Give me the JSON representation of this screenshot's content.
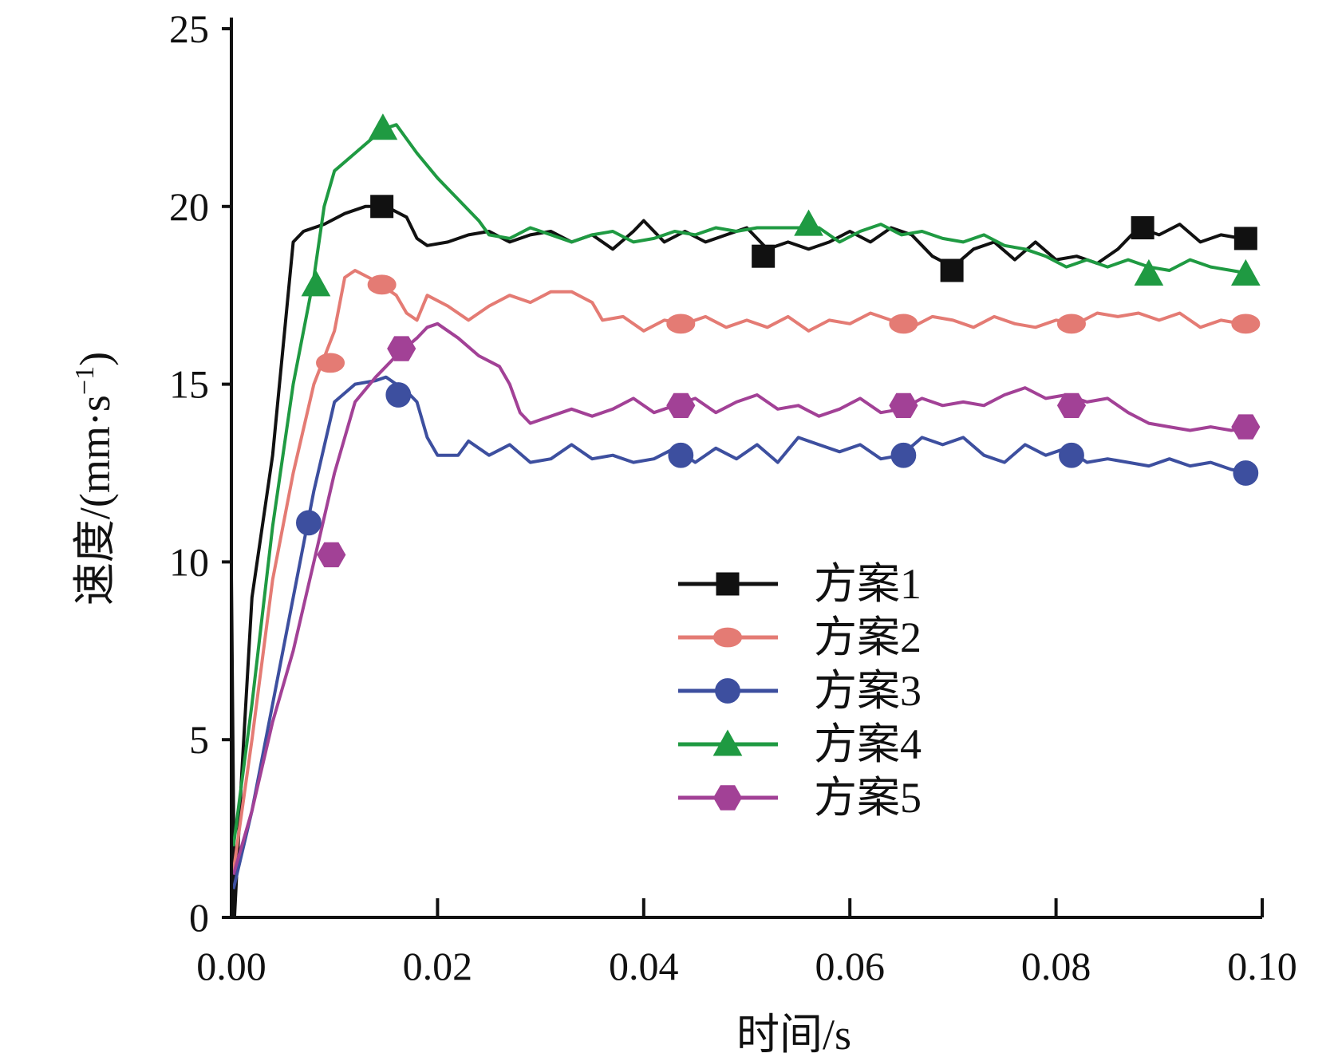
{
  "chart_data": {
    "type": "line",
    "title": "",
    "xlabel": "时间/s",
    "ylabel_main": "速度/(mm·s",
    "ylabel_sup": "−1",
    "ylabel_close": ")",
    "xlim": [
      0,
      0.1
    ],
    "ylim": [
      0,
      25
    ],
    "xticks": [
      0.0,
      0.02,
      0.04,
      0.06,
      0.08,
      0.1
    ],
    "xtick_labels": [
      "0.00",
      "0.02",
      "0.04",
      "0.06",
      "0.08",
      "0.10"
    ],
    "yticks": [
      0,
      5,
      10,
      15,
      20,
      25
    ],
    "ytick_labels": [
      "0",
      "5",
      "10",
      "15",
      "20",
      "25"
    ],
    "grid": false,
    "legend_position": "center-right",
    "series": [
      {
        "name": "方案1",
        "color": "#111111",
        "marker": "square",
        "points": [
          [
            0,
            9.7
          ],
          [
            0.0003,
            0
          ],
          [
            0.001,
            4
          ],
          [
            0.002,
            9
          ],
          [
            0.004,
            13
          ],
          [
            0.006,
            19
          ],
          [
            0.007,
            19.3
          ],
          [
            0.009,
            19.5
          ],
          [
            0.011,
            19.8
          ],
          [
            0.013,
            20
          ],
          [
            0.015,
            20
          ],
          [
            0.017,
            19.7
          ],
          [
            0.018,
            19.1
          ],
          [
            0.019,
            18.9
          ],
          [
            0.021,
            19
          ],
          [
            0.023,
            19.2
          ],
          [
            0.025,
            19.3
          ],
          [
            0.027,
            19
          ],
          [
            0.029,
            19.2
          ],
          [
            0.031,
            19.3
          ],
          [
            0.033,
            19
          ],
          [
            0.035,
            19.2
          ],
          [
            0.037,
            18.8
          ],
          [
            0.039,
            19.3
          ],
          [
            0.04,
            19.6
          ],
          [
            0.042,
            19
          ],
          [
            0.044,
            19.3
          ],
          [
            0.046,
            19
          ],
          [
            0.048,
            19.2
          ],
          [
            0.05,
            19.4
          ],
          [
            0.052,
            18.8
          ],
          [
            0.054,
            19
          ],
          [
            0.056,
            18.8
          ],
          [
            0.058,
            19
          ],
          [
            0.06,
            19.3
          ],
          [
            0.062,
            19
          ],
          [
            0.064,
            19.4
          ],
          [
            0.066,
            19.2
          ],
          [
            0.068,
            18.6
          ],
          [
            0.07,
            18.3
          ],
          [
            0.072,
            18.8
          ],
          [
            0.074,
            19
          ],
          [
            0.076,
            18.5
          ],
          [
            0.078,
            19
          ],
          [
            0.08,
            18.5
          ],
          [
            0.082,
            18.6
          ],
          [
            0.084,
            18.4
          ],
          [
            0.086,
            18.8
          ],
          [
            0.088,
            19.4
          ],
          [
            0.09,
            19.2
          ],
          [
            0.092,
            19.5
          ],
          [
            0.094,
            19
          ],
          [
            0.096,
            19.2
          ],
          [
            0.098,
            19.1
          ],
          [
            0.099,
            19.1
          ]
        ],
        "marker_points": [
          [
            0.0146,
            20
          ],
          [
            0.0516,
            18.6
          ],
          [
            0.0699,
            18.2
          ],
          [
            0.0884,
            19.4
          ],
          [
            0.0984,
            19.1
          ]
        ]
      },
      {
        "name": "方案2",
        "color": "#e47b74",
        "marker": "ellipse",
        "points": [
          [
            0.0002,
            1.3
          ],
          [
            0.002,
            5
          ],
          [
            0.004,
            9.5
          ],
          [
            0.006,
            12.5
          ],
          [
            0.008,
            15
          ],
          [
            0.01,
            16.5
          ],
          [
            0.011,
            18
          ],
          [
            0.012,
            18.2
          ],
          [
            0.014,
            17.9
          ],
          [
            0.016,
            17.5
          ],
          [
            0.017,
            17
          ],
          [
            0.018,
            16.8
          ],
          [
            0.019,
            17.5
          ],
          [
            0.021,
            17.2
          ],
          [
            0.023,
            16.8
          ],
          [
            0.025,
            17.2
          ],
          [
            0.027,
            17.5
          ],
          [
            0.029,
            17.3
          ],
          [
            0.031,
            17.6
          ],
          [
            0.033,
            17.6
          ],
          [
            0.035,
            17.3
          ],
          [
            0.036,
            16.8
          ],
          [
            0.038,
            16.9
          ],
          [
            0.04,
            16.5
          ],
          [
            0.042,
            16.8
          ],
          [
            0.044,
            16.7
          ],
          [
            0.046,
            16.9
          ],
          [
            0.048,
            16.6
          ],
          [
            0.05,
            16.8
          ],
          [
            0.052,
            16.6
          ],
          [
            0.054,
            16.9
          ],
          [
            0.056,
            16.5
          ],
          [
            0.058,
            16.8
          ],
          [
            0.06,
            16.7
          ],
          [
            0.062,
            17
          ],
          [
            0.064,
            16.8
          ],
          [
            0.066,
            16.6
          ],
          [
            0.068,
            16.9
          ],
          [
            0.07,
            16.8
          ],
          [
            0.072,
            16.6
          ],
          [
            0.074,
            16.9
          ],
          [
            0.076,
            16.7
          ],
          [
            0.078,
            16.6
          ],
          [
            0.08,
            16.8
          ],
          [
            0.082,
            16.7
          ],
          [
            0.084,
            17
          ],
          [
            0.086,
            16.9
          ],
          [
            0.088,
            17
          ],
          [
            0.09,
            16.8
          ],
          [
            0.092,
            17
          ],
          [
            0.094,
            16.6
          ],
          [
            0.096,
            16.8
          ],
          [
            0.098,
            16.7
          ],
          [
            0.099,
            16.7
          ]
        ],
        "marker_points": [
          [
            0.0096,
            15.6
          ],
          [
            0.0146,
            17.8
          ],
          [
            0.0436,
            16.7
          ],
          [
            0.0652,
            16.7
          ],
          [
            0.0815,
            16.7
          ],
          [
            0.0984,
            16.7
          ]
        ]
      },
      {
        "name": "方案3",
        "color": "#3d4f9f",
        "marker": "circle",
        "points": [
          [
            0.0002,
            0.8
          ],
          [
            0.002,
            3
          ],
          [
            0.004,
            6
          ],
          [
            0.006,
            9
          ],
          [
            0.008,
            12
          ],
          [
            0.01,
            14.5
          ],
          [
            0.012,
            15
          ],
          [
            0.014,
            15.1
          ],
          [
            0.015,
            15.2
          ],
          [
            0.016,
            15
          ],
          [
            0.017,
            14.8
          ],
          [
            0.018,
            14.5
          ],
          [
            0.019,
            13.5
          ],
          [
            0.02,
            13
          ],
          [
            0.022,
            13
          ],
          [
            0.023,
            13.4
          ],
          [
            0.025,
            13
          ],
          [
            0.027,
            13.3
          ],
          [
            0.029,
            12.8
          ],
          [
            0.031,
            12.9
          ],
          [
            0.033,
            13.3
          ],
          [
            0.035,
            12.9
          ],
          [
            0.037,
            13
          ],
          [
            0.039,
            12.8
          ],
          [
            0.041,
            12.9
          ],
          [
            0.043,
            13.2
          ],
          [
            0.045,
            12.8
          ],
          [
            0.047,
            13.2
          ],
          [
            0.049,
            12.9
          ],
          [
            0.051,
            13.3
          ],
          [
            0.053,
            12.8
          ],
          [
            0.055,
            13.5
          ],
          [
            0.057,
            13.3
          ],
          [
            0.059,
            13.1
          ],
          [
            0.061,
            13.3
          ],
          [
            0.063,
            12.9
          ],
          [
            0.065,
            13
          ],
          [
            0.067,
            13.5
          ],
          [
            0.069,
            13.3
          ],
          [
            0.071,
            13.5
          ],
          [
            0.073,
            13
          ],
          [
            0.075,
            12.8
          ],
          [
            0.077,
            13.3
          ],
          [
            0.079,
            13
          ],
          [
            0.081,
            13.2
          ],
          [
            0.083,
            12.8
          ],
          [
            0.085,
            12.9
          ],
          [
            0.087,
            12.8
          ],
          [
            0.089,
            12.7
          ],
          [
            0.091,
            12.9
          ],
          [
            0.093,
            12.7
          ],
          [
            0.095,
            12.8
          ],
          [
            0.097,
            12.6
          ],
          [
            0.099,
            12.5
          ]
        ],
        "marker_points": [
          [
            0.0075,
            11.1
          ],
          [
            0.0162,
            14.7
          ],
          [
            0.0436,
            13
          ],
          [
            0.0652,
            13
          ],
          [
            0.0815,
            13
          ],
          [
            0.0984,
            12.5
          ]
        ]
      },
      {
        "name": "方案4",
        "color": "#1f9a42",
        "marker": "triangle",
        "points": [
          [
            0.0002,
            2
          ],
          [
            0.002,
            6
          ],
          [
            0.004,
            11
          ],
          [
            0.006,
            15
          ],
          [
            0.008,
            18
          ],
          [
            0.009,
            20
          ],
          [
            0.01,
            21
          ],
          [
            0.012,
            21.5
          ],
          [
            0.014,
            22
          ],
          [
            0.015,
            22.2
          ],
          [
            0.016,
            22.3
          ],
          [
            0.018,
            21.5
          ],
          [
            0.02,
            20.8
          ],
          [
            0.022,
            20.2
          ],
          [
            0.024,
            19.6
          ],
          [
            0.025,
            19.2
          ],
          [
            0.027,
            19.1
          ],
          [
            0.029,
            19.4
          ],
          [
            0.031,
            19.2
          ],
          [
            0.033,
            19
          ],
          [
            0.035,
            19.2
          ],
          [
            0.037,
            19.3
          ],
          [
            0.039,
            19
          ],
          [
            0.041,
            19.1
          ],
          [
            0.043,
            19.3
          ],
          [
            0.045,
            19.2
          ],
          [
            0.047,
            19.4
          ],
          [
            0.049,
            19.3
          ],
          [
            0.051,
            19.4
          ],
          [
            0.053,
            19.4
          ],
          [
            0.055,
            19.4
          ],
          [
            0.057,
            19.4
          ],
          [
            0.059,
            19
          ],
          [
            0.061,
            19.3
          ],
          [
            0.063,
            19.5
          ],
          [
            0.065,
            19.2
          ],
          [
            0.067,
            19.3
          ],
          [
            0.069,
            19.1
          ],
          [
            0.071,
            19
          ],
          [
            0.073,
            19.2
          ],
          [
            0.075,
            18.9
          ],
          [
            0.077,
            18.8
          ],
          [
            0.079,
            18.6
          ],
          [
            0.081,
            18.3
          ],
          [
            0.083,
            18.5
          ],
          [
            0.085,
            18.3
          ],
          [
            0.087,
            18.5
          ],
          [
            0.089,
            18.3
          ],
          [
            0.091,
            18.2
          ],
          [
            0.093,
            18.5
          ],
          [
            0.095,
            18.3
          ],
          [
            0.097,
            18.2
          ],
          [
            0.099,
            18.1
          ]
        ],
        "marker_points": [
          [
            0.0082,
            17.8
          ],
          [
            0.0147,
            22.2
          ],
          [
            0.056,
            19.5
          ],
          [
            0.089,
            18.1
          ],
          [
            0.0984,
            18.1
          ]
        ]
      },
      {
        "name": "方案5",
        "color": "#a24196",
        "marker": "hexagon",
        "points": [
          [
            0.0002,
            1.2
          ],
          [
            0.002,
            3
          ],
          [
            0.004,
            5.5
          ],
          [
            0.006,
            7.5
          ],
          [
            0.008,
            10
          ],
          [
            0.01,
            12.5
          ],
          [
            0.012,
            14.5
          ],
          [
            0.014,
            15.2
          ],
          [
            0.016,
            15.8
          ],
          [
            0.018,
            16.3
          ],
          [
            0.019,
            16.6
          ],
          [
            0.02,
            16.7
          ],
          [
            0.022,
            16.3
          ],
          [
            0.024,
            15.8
          ],
          [
            0.026,
            15.5
          ],
          [
            0.027,
            15
          ],
          [
            0.028,
            14.2
          ],
          [
            0.029,
            13.9
          ],
          [
            0.031,
            14.1
          ],
          [
            0.033,
            14.3
          ],
          [
            0.035,
            14.1
          ],
          [
            0.037,
            14.3
          ],
          [
            0.039,
            14.6
          ],
          [
            0.041,
            14.2
          ],
          [
            0.043,
            14.4
          ],
          [
            0.045,
            14.6
          ],
          [
            0.047,
            14.2
          ],
          [
            0.049,
            14.5
          ],
          [
            0.051,
            14.7
          ],
          [
            0.053,
            14.3
          ],
          [
            0.055,
            14.4
          ],
          [
            0.057,
            14.1
          ],
          [
            0.059,
            14.3
          ],
          [
            0.061,
            14.6
          ],
          [
            0.063,
            14.2
          ],
          [
            0.065,
            14.3
          ],
          [
            0.067,
            14.6
          ],
          [
            0.069,
            14.4
          ],
          [
            0.071,
            14.5
          ],
          [
            0.073,
            14.4
          ],
          [
            0.075,
            14.7
          ],
          [
            0.077,
            14.9
          ],
          [
            0.079,
            14.6
          ],
          [
            0.081,
            14.7
          ],
          [
            0.083,
            14.5
          ],
          [
            0.085,
            14.6
          ],
          [
            0.087,
            14.2
          ],
          [
            0.089,
            13.9
          ],
          [
            0.091,
            13.8
          ],
          [
            0.093,
            13.7
          ],
          [
            0.095,
            13.8
          ],
          [
            0.097,
            13.7
          ],
          [
            0.099,
            13.8
          ]
        ],
        "marker_points": [
          [
            0.0097,
            10.2
          ],
          [
            0.0165,
            16
          ],
          [
            0.0436,
            14.4
          ],
          [
            0.0652,
            14.4
          ],
          [
            0.0815,
            14.4
          ],
          [
            0.0984,
            13.8
          ]
        ]
      }
    ]
  }
}
